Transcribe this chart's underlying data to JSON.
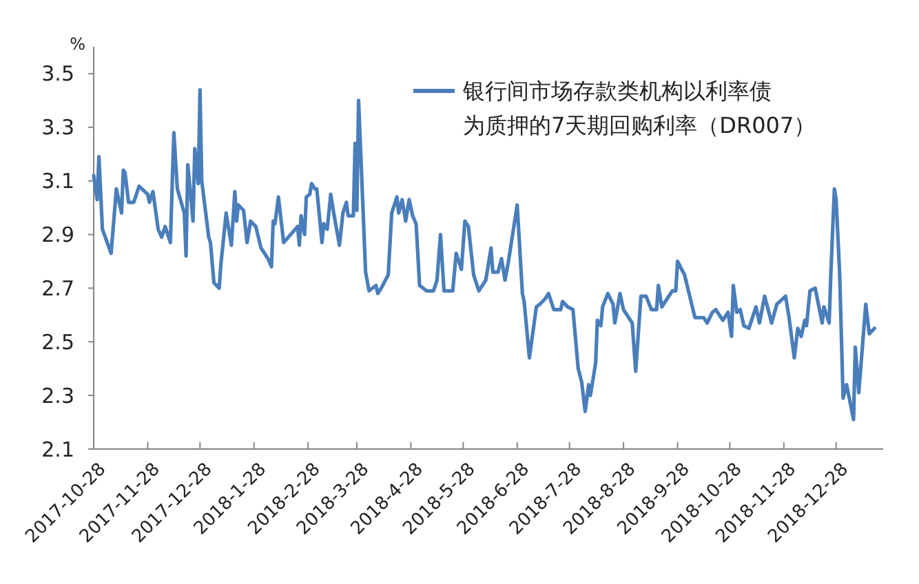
{
  "chart_data": {
    "type": "line",
    "ylabel": "%",
    "legend": "top right",
    "grid": false,
    "marker": "none",
    "line_style": "solid",
    "xlim": [
      "2017-10-28",
      "2019-01-24"
    ],
    "xticks": [
      {
        "value": "2017-10-28",
        "label": "2017-10-28"
      },
      {
        "value": "2017-11-28",
        "label": "2017-11-28"
      },
      {
        "value": "2017-12-28",
        "label": "2017-12-28"
      },
      {
        "value": "2018-01-28",
        "label": "2018-1-28"
      },
      {
        "value": "2018-02-28",
        "label": "2018-2-28"
      },
      {
        "value": "2018-03-28",
        "label": "2018-3-28"
      },
      {
        "value": "2018-04-28",
        "label": "2018-4-28"
      },
      {
        "value": "2018-05-28",
        "label": "2018-5-28"
      },
      {
        "value": "2018-06-28",
        "label": "2018-6-28"
      },
      {
        "value": "2018-07-28",
        "label": "2018-7-28"
      },
      {
        "value": "2018-08-28",
        "label": "2018-8-28"
      },
      {
        "value": "2018-09-28",
        "label": "2018-9-28"
      },
      {
        "value": "2018-10-28",
        "label": "2018-10-28"
      },
      {
        "value": "2018-11-28",
        "label": "2018-11-28"
      },
      {
        "value": "2018-12-28",
        "label": "2018-12-28"
      }
    ],
    "ylim": [
      2.1,
      3.6
    ],
    "yticks": [
      {
        "value": 2.1,
        "label": "2.1"
      },
      2.3,
      2.5,
      2.7,
      2.9,
      3.1,
      3.3,
      3.5
    ],
    "x": [
      "2017-10-28",
      "2017-10-30",
      "2017-10-31",
      "2017-11-02",
      "2017-11-07",
      "2017-11-10",
      "2017-11-13",
      "2017-11-14",
      "2017-11-15",
      "2017-11-17",
      "2017-11-20",
      "2017-11-23",
      "2017-11-28",
      "2017-11-29",
      "2017-12-01",
      "2017-12-04",
      "2017-12-06",
      "2017-12-08",
      "2017-12-11",
      "2017-12-13",
      "2017-12-15",
      "2017-12-19",
      "2017-12-20",
      "2017-12-21",
      "2017-12-24",
      "2017-12-25",
      "2017-12-27",
      "2017-12-28",
      "2017-12-29",
      "2018-01-02",
      "2018-01-03",
      "2018-01-05",
      "2018-01-08",
      "2018-01-09",
      "2018-01-12",
      "2018-01-15",
      "2018-01-17",
      "2018-01-18",
      "2018-01-19",
      "2018-01-22",
      "2018-01-24",
      "2018-01-26",
      "2018-01-29",
      "2018-02-01",
      "2018-02-05",
      "2018-02-07",
      "2018-02-08",
      "2018-02-09",
      "2018-02-11",
      "2018-02-14",
      "2018-02-22",
      "2018-02-23",
      "2018-02-24",
      "2018-02-26",
      "2018-02-27",
      "2018-03-01",
      "2018-03-02",
      "2018-03-04",
      "2018-03-05",
      "2018-03-08",
      "2018-03-09",
      "2018-03-11",
      "2018-03-13",
      "2018-03-15",
      "2018-03-18",
      "2018-03-20",
      "2018-03-22",
      "2018-03-23",
      "2018-03-26",
      "2018-03-27",
      "2018-03-28",
      "2018-03-29",
      "2018-04-02",
      "2018-04-04",
      "2018-04-08",
      "2018-04-09",
      "2018-04-11",
      "2018-04-15",
      "2018-04-17",
      "2018-04-20",
      "2018-04-21",
      "2018-04-23",
      "2018-04-25",
      "2018-04-27",
      "2018-04-29",
      "2018-05-01",
      "2018-05-03",
      "2018-05-07",
      "2018-05-11",
      "2018-05-13",
      "2018-05-15",
      "2018-05-17",
      "2018-05-22",
      "2018-05-24",
      "2018-05-27",
      "2018-05-29",
      "2018-05-31",
      "2018-06-03",
      "2018-06-06",
      "2018-06-10",
      "2018-06-13",
      "2018-06-14",
      "2018-06-17",
      "2018-06-19",
      "2018-06-21",
      "2018-06-23",
      "2018-06-28",
      "2018-07-01",
      "2018-07-02",
      "2018-07-05",
      "2018-07-09",
      "2018-07-11",
      "2018-07-14",
      "2018-07-16",
      "2018-07-19",
      "2018-07-23",
      "2018-07-24",
      "2018-07-27",
      "2018-07-30",
      "2018-08-02",
      "2018-08-04",
      "2018-08-06",
      "2018-08-08",
      "2018-08-09",
      "2018-08-12",
      "2018-08-13",
      "2018-08-15",
      "2018-08-16",
      "2018-08-19",
      "2018-08-22",
      "2018-08-23",
      "2018-08-26",
      "2018-08-28",
      "2018-09-02",
      "2018-09-04",
      "2018-09-07",
      "2018-09-10",
      "2018-09-13",
      "2018-09-16",
      "2018-09-17",
      "2018-09-19",
      "2018-09-22",
      "2018-09-25",
      "2018-09-27",
      "2018-09-28",
      "2018-10-02",
      "2018-10-08",
      "2018-10-13",
      "2018-10-15",
      "2018-10-18",
      "2018-10-20",
      "2018-10-24",
      "2018-10-27",
      "2018-10-29",
      "2018-10-30",
      "2018-11-01",
      "2018-11-03",
      "2018-11-05",
      "2018-11-08",
      "2018-11-12",
      "2018-11-14",
      "2018-11-17",
      "2018-11-21",
      "2018-11-24",
      "2018-11-29",
      "2018-12-01",
      "2018-12-04",
      "2018-12-06",
      "2018-12-08",
      "2018-12-10",
      "2018-12-11",
      "2018-12-13",
      "2018-12-16",
      "2018-12-20",
      "2018-12-21",
      "2018-12-24",
      "2018-12-25",
      "2018-12-27",
      "2018-12-28",
      "2018-12-30",
      "2019-01-01",
      "2019-01-03",
      "2019-01-07",
      "2019-01-08",
      "2019-01-10",
      "2019-01-14",
      "2019-01-16",
      "2019-01-19"
    ],
    "series": [
      {
        "name": "银行间市场存款类机构以利率债为质押的7天期回购利率（DR007）",
        "color": "#4a7ebb",
        "values": [
          3.12,
          3.03,
          3.19,
          2.92,
          2.83,
          3.07,
          2.98,
          3.14,
          3.13,
          3.02,
          3.02,
          3.08,
          3.05,
          3.02,
          3.06,
          2.92,
          2.89,
          2.93,
          2.87,
          3.28,
          3.07,
          2.98,
          2.82,
          3.16,
          2.95,
          3.22,
          3.09,
          3.44,
          3.1,
          2.89,
          2.87,
          2.72,
          2.7,
          2.79,
          2.98,
          2.86,
          3.06,
          2.95,
          3.01,
          2.99,
          2.87,
          2.95,
          2.93,
          2.85,
          2.81,
          2.78,
          2.95,
          2.94,
          3.04,
          2.87,
          2.93,
          2.86,
          2.97,
          2.9,
          3.04,
          3.05,
          3.09,
          3.07,
          3.07,
          2.87,
          2.94,
          2.92,
          3.05,
          2.97,
          2.86,
          2.98,
          3.02,
          2.97,
          2.97,
          3.24,
          2.99,
          3.4,
          2.76,
          2.69,
          2.71,
          2.68,
          2.7,
          2.75,
          2.98,
          3.04,
          2.98,
          3.03,
          2.95,
          3.03,
          2.97,
          2.94,
          2.71,
          2.69,
          2.69,
          2.73,
          2.9,
          2.69,
          2.69,
          2.83,
          2.77,
          2.95,
          2.93,
          2.75,
          2.69,
          2.73,
          2.85,
          2.76,
          2.76,
          2.81,
          2.73,
          2.8,
          3.01,
          2.68,
          2.65,
          2.44,
          2.63,
          2.64,
          2.66,
          2.68,
          2.62,
          2.62,
          2.65,
          2.63,
          2.62,
          2.4,
          2.35,
          2.24,
          2.34,
          2.3,
          2.42,
          2.58,
          2.56,
          2.63,
          2.68,
          2.64,
          2.57,
          2.68,
          2.62,
          2.57,
          2.39,
          2.67,
          2.67,
          2.62,
          2.62,
          2.71,
          2.63,
          2.66,
          2.69,
          2.69,
          2.8,
          2.75,
          2.59,
          2.59,
          2.57,
          2.61,
          2.62,
          2.58,
          2.61,
          2.52,
          2.71,
          2.61,
          2.62,
          2.56,
          2.55,
          2.63,
          2.57,
          2.67,
          2.57,
          2.64,
          2.67,
          2.59,
          2.44,
          2.55,
          2.52,
          2.58,
          2.56,
          2.69,
          2.7,
          2.57,
          2.63,
          2.57,
          2.76,
          3.07,
          3.03,
          2.76,
          2.29,
          2.34,
          2.21,
          2.48,
          2.31,
          2.64,
          2.53,
          2.55
        ]
      }
    ]
  }
}
